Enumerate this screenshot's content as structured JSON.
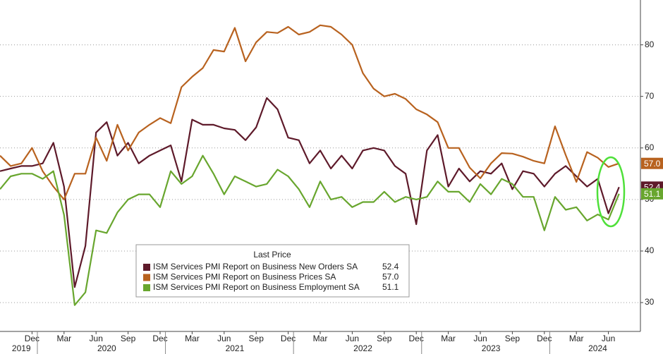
{
  "chart_data": {
    "type": "line",
    "xlim": [
      "2019-09",
      "2024-09"
    ],
    "ylim": [
      24.4,
      88.7
    ],
    "yticks": [
      30,
      40,
      50,
      60,
      70,
      80
    ],
    "grid": true,
    "xticks": [
      {
        "value": "2019-12",
        "label": "Dec"
      },
      {
        "value": "2020-03",
        "label": "Mar"
      },
      {
        "value": "2020-06",
        "label": "Jun"
      },
      {
        "value": "2020-09",
        "label": "Sep"
      },
      {
        "value": "2020-12",
        "label": "Dec"
      },
      {
        "value": "2021-03",
        "label": "Mar"
      },
      {
        "value": "2021-06",
        "label": "Jun"
      },
      {
        "value": "2021-09",
        "label": "Sep"
      },
      {
        "value": "2021-12",
        "label": "Dec"
      },
      {
        "value": "2022-03",
        "label": "Mar"
      },
      {
        "value": "2022-06",
        "label": "Jun"
      },
      {
        "value": "2022-09",
        "label": "Sep"
      },
      {
        "value": "2022-12",
        "label": "Dec"
      },
      {
        "value": "2023-03",
        "label": "Mar"
      },
      {
        "value": "2023-06",
        "label": "Jun"
      },
      {
        "value": "2023-09",
        "label": "Sep"
      },
      {
        "value": "2023-12",
        "label": "Dec"
      },
      {
        "value": "2024-03",
        "label": "Mar"
      },
      {
        "value": "2024-06",
        "label": "Jun"
      }
    ],
    "year_labels": [
      "2019",
      "2020",
      "2021",
      "2022",
      "2023",
      "2024"
    ],
    "legend_title": "Last Price",
    "x": [
      "2019-09",
      "2019-10",
      "2019-11",
      "2019-12",
      "2020-01",
      "2020-02",
      "2020-03",
      "2020-04",
      "2020-05",
      "2020-06",
      "2020-07",
      "2020-08",
      "2020-09",
      "2020-10",
      "2020-11",
      "2020-12",
      "2021-01",
      "2021-02",
      "2021-03",
      "2021-04",
      "2021-05",
      "2021-06",
      "2021-07",
      "2021-08",
      "2021-09",
      "2021-10",
      "2021-11",
      "2021-12",
      "2022-01",
      "2022-02",
      "2022-03",
      "2022-04",
      "2022-05",
      "2022-06",
      "2022-07",
      "2022-08",
      "2022-09",
      "2022-10",
      "2022-11",
      "2022-12",
      "2023-01",
      "2023-02",
      "2023-03",
      "2023-04",
      "2023-05",
      "2023-06",
      "2023-07",
      "2023-08",
      "2023-09",
      "2023-10",
      "2023-11",
      "2023-12",
      "2024-01",
      "2024-02",
      "2024-03",
      "2024-04",
      "2024-05",
      "2024-06",
      "2024-07"
    ],
    "series": [
      {
        "name": "ISM Services PMI Report on Business New Orders SA",
        "color": "#5e1a2a",
        "last_value_label": "52.4",
        "values": [
          55.5,
          56,
          56.5,
          56.5,
          57,
          61,
          52.5,
          33,
          41,
          63,
          65,
          58.5,
          61,
          57,
          58.5,
          59.5,
          60.5,
          53.5,
          65.5,
          64.5,
          64.5,
          63.8,
          63.5,
          61.5,
          64,
          69.7,
          67.5,
          62,
          61.5,
          57,
          59.5,
          56,
          58.5,
          56,
          59.5,
          60,
          59.5,
          56.5,
          55,
          45.2,
          59.5,
          62.5,
          52.5,
          56,
          53.5,
          55.5,
          55,
          57,
          52,
          55.5,
          55,
          52.5,
          55,
          56.5,
          54.5,
          52.5,
          54,
          47.3,
          52.4
        ]
      },
      {
        "name": "ISM Services PMI Report on Business Prices SA",
        "color": "#b8621f",
        "last_value_label": "57.0",
        "values": [
          58.5,
          56.5,
          57,
          60,
          55.5,
          52.5,
          50,
          55,
          55,
          62,
          57.5,
          64.5,
          59.5,
          63,
          64.5,
          65.8,
          64.8,
          71.8,
          73.8,
          75.5,
          79,
          78.7,
          83.3,
          76.8,
          80.5,
          82.5,
          82.3,
          83.5,
          82,
          82.5,
          83.8,
          83.5,
          82,
          80,
          74.5,
          71.5,
          70,
          70.5,
          69.5,
          67.5,
          66.5,
          65,
          60,
          60,
          56.2,
          54.1,
          57,
          59,
          58.9,
          58.3,
          57.5,
          57,
          64.2,
          58.6,
          53.4,
          59.2,
          58.1,
          56.3,
          57.0
        ]
      },
      {
        "name": "ISM Services PMI Report on Business Employment SA",
        "color": "#68a62e",
        "last_value_label": "51.1",
        "values": [
          52,
          54.5,
          55,
          55,
          54,
          55.5,
          47,
          29.5,
          32,
          44,
          43.5,
          47.5,
          50,
          51,
          51,
          48.5,
          55.5,
          53,
          54.5,
          58.5,
          55,
          51,
          54.5,
          53.5,
          52.5,
          53,
          55.8,
          54.5,
          52,
          48.5,
          53.5,
          50,
          50.5,
          48.5,
          49.5,
          49.5,
          51.5,
          49.5,
          50.5,
          50,
          50.5,
          53.5,
          51.5,
          51.5,
          49.5,
          53,
          51,
          54,
          53,
          50.5,
          50.5,
          44,
          50.5,
          48,
          48.5,
          45.9,
          47.1,
          46.1,
          51.1
        ]
      }
    ]
  }
}
